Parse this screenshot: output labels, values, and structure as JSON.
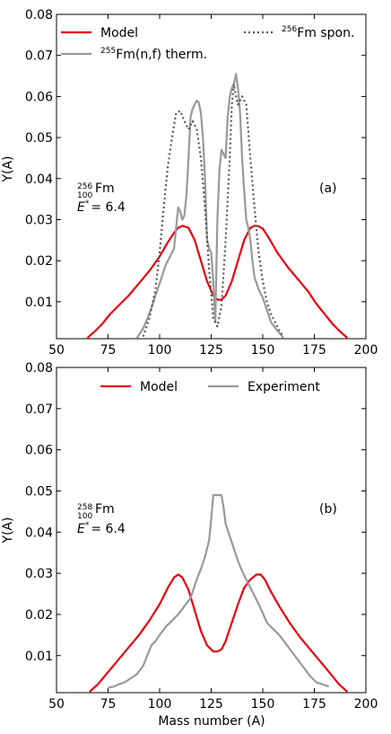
{
  "chart_data": [
    {
      "type": "line",
      "panel_label": "(a)",
      "nucleus": {
        "mass": "256",
        "charge": "100",
        "symbol": "Fm"
      },
      "energy": {
        "symbol": "E",
        "star": "*",
        "value": "= 6.4"
      },
      "xlabel": "",
      "ylabel": "Y(A)",
      "xlim": [
        50,
        200
      ],
      "ylim": [
        0.001,
        0.08
      ],
      "xticks": [
        "50",
        "75",
        "100",
        "125",
        "150",
        "175",
        "200"
      ],
      "yticks": [
        "0.01",
        "0.02",
        "0.03",
        "0.04",
        "0.05",
        "0.06",
        "0.07",
        "0.08"
      ],
      "series": [
        {
          "name": "Model",
          "color": "#e8000b",
          "style": "solid",
          "x": [
            65,
            68,
            72,
            76,
            80,
            85,
            90,
            95,
            100,
            104,
            107,
            109,
            111,
            114,
            117,
            120,
            123,
            126,
            128,
            130,
            132,
            135,
            138,
            141,
            144,
            146,
            148,
            150,
            153,
            157,
            162,
            167,
            172,
            176,
            180,
            184,
            188,
            191
          ],
          "y": [
            0.0012,
            0.0025,
            0.0045,
            0.007,
            0.009,
            0.0115,
            0.0145,
            0.0175,
            0.021,
            0.0245,
            0.0268,
            0.028,
            0.0285,
            0.028,
            0.025,
            0.02,
            0.015,
            0.0115,
            0.0105,
            0.0105,
            0.0115,
            0.015,
            0.02,
            0.025,
            0.028,
            0.0285,
            0.0284,
            0.0278,
            0.0255,
            0.022,
            0.0185,
            0.0155,
            0.0125,
            0.0095,
            0.007,
            0.0045,
            0.0025,
            0.0012
          ]
        },
        {
          "name_mass": "255",
          "name": "Fm(n,f) therm.",
          "color": "#999999",
          "style": "solid",
          "x": [
            89,
            92,
            95,
            97,
            99,
            101,
            103,
            105,
            107,
            108,
            109,
            110,
            111,
            112,
            113,
            114,
            115,
            116,
            117,
            118,
            119,
            120,
            121,
            122,
            123,
            124,
            125,
            126,
            127,
            128,
            129,
            130,
            131,
            132,
            133,
            134,
            135,
            136,
            137,
            138,
            139,
            140,
            141,
            142,
            143,
            144,
            145,
            146,
            148,
            150,
            152,
            154,
            157,
            160
          ],
          "y": [
            0.0012,
            0.0035,
            0.007,
            0.01,
            0.013,
            0.016,
            0.019,
            0.021,
            0.023,
            0.028,
            0.033,
            0.032,
            0.03,
            0.031,
            0.036,
            0.045,
            0.055,
            0.057,
            0.058,
            0.059,
            0.0585,
            0.056,
            0.05,
            0.04,
            0.025,
            0.023,
            0.022,
            0.015,
            0.005,
            0.03,
            0.042,
            0.047,
            0.046,
            0.045,
            0.055,
            0.06,
            0.062,
            0.063,
            0.0655,
            0.062,
            0.056,
            0.045,
            0.037,
            0.03,
            0.028,
            0.025,
            0.02,
            0.016,
            0.013,
            0.011,
            0.008,
            0.005,
            0.003,
            0.0012
          ]
        },
        {
          "name_mass": "256",
          "name": "Fm spon.",
          "color": "#555555",
          "style": "dotted",
          "x": [
            92,
            95,
            98,
            100,
            102,
            104,
            106,
            108,
            110,
            112,
            114,
            116,
            118,
            120,
            122,
            124,
            126,
            128,
            130,
            132,
            134,
            135,
            136,
            137,
            138,
            140,
            142,
            144,
            146,
            148,
            150,
            152,
            154,
            156,
            158,
            160
          ],
          "y": [
            0.0015,
            0.006,
            0.013,
            0.022,
            0.033,
            0.043,
            0.05,
            0.056,
            0.0565,
            0.054,
            0.052,
            0.054,
            0.052,
            0.045,
            0.033,
            0.018,
            0.006,
            0.004,
            0.009,
            0.025,
            0.045,
            0.058,
            0.063,
            0.06,
            0.058,
            0.06,
            0.058,
            0.045,
            0.033,
            0.022,
            0.015,
            0.01,
            0.007,
            0.005,
            0.003,
            0.0015
          ]
        }
      ]
    },
    {
      "type": "line",
      "panel_label": "(b)",
      "nucleus": {
        "mass": "258",
        "charge": "100",
        "symbol": "Fm"
      },
      "energy": {
        "symbol": "E",
        "star": "*",
        "value": "= 6.4"
      },
      "xlabel": "Mass number (A)",
      "ylabel": "Y(A)",
      "xlim": [
        50,
        200
      ],
      "ylim": [
        0.001,
        0.08
      ],
      "xticks": [
        "50",
        "75",
        "100",
        "125",
        "150",
        "175",
        "200"
      ],
      "yticks": [
        "0.01",
        "0.02",
        "0.03",
        "0.04",
        "0.05",
        "0.06",
        "0.07",
        "0.08"
      ],
      "series": [
        {
          "name": "Model",
          "color": "#e8000b",
          "style": "solid",
          "x": [
            66,
            70,
            75,
            80,
            85,
            90,
            95,
            100,
            104,
            107,
            109,
            111,
            114,
            117,
            120,
            123,
            126,
            128,
            130,
            132,
            135,
            138,
            141,
            144,
            147,
            149,
            151,
            154,
            158,
            163,
            168,
            173,
            178,
            183,
            187,
            191
          ],
          "y": [
            0.0012,
            0.003,
            0.006,
            0.009,
            0.012,
            0.015,
            0.0185,
            0.0225,
            0.0265,
            0.029,
            0.0297,
            0.029,
            0.026,
            0.021,
            0.016,
            0.0125,
            0.011,
            0.011,
            0.0115,
            0.0135,
            0.018,
            0.0225,
            0.0265,
            0.0285,
            0.0297,
            0.0297,
            0.0285,
            0.0255,
            0.022,
            0.018,
            0.0145,
            0.0115,
            0.0085,
            0.0055,
            0.003,
            0.0012
          ]
        },
        {
          "name": "Experiment",
          "color": "#999999",
          "style": "solid",
          "x": [
            75,
            78,
            80,
            83,
            86,
            89,
            92,
            94,
            96,
            98,
            100,
            103,
            106,
            109,
            112,
            115,
            118,
            120,
            122,
            124,
            125,
            126,
            127,
            128,
            129,
            130,
            131,
            132,
            134,
            136,
            138,
            140,
            143,
            146,
            149,
            152,
            155,
            158,
            161,
            164,
            167,
            170,
            173,
            176,
            179,
            182
          ],
          "y": [
            0.0022,
            0.0025,
            0.003,
            0.0035,
            0.0045,
            0.0055,
            0.0075,
            0.01,
            0.0125,
            0.0135,
            0.015,
            0.017,
            0.0185,
            0.02,
            0.022,
            0.024,
            0.0285,
            0.031,
            0.034,
            0.038,
            0.043,
            0.049,
            0.049,
            0.049,
            0.049,
            0.049,
            0.046,
            0.042,
            0.039,
            0.036,
            0.033,
            0.0305,
            0.0275,
            0.0245,
            0.0215,
            0.018,
            0.0165,
            0.015,
            0.013,
            0.011,
            0.009,
            0.007,
            0.005,
            0.0035,
            0.003,
            0.0025
          ]
        }
      ]
    }
  ]
}
